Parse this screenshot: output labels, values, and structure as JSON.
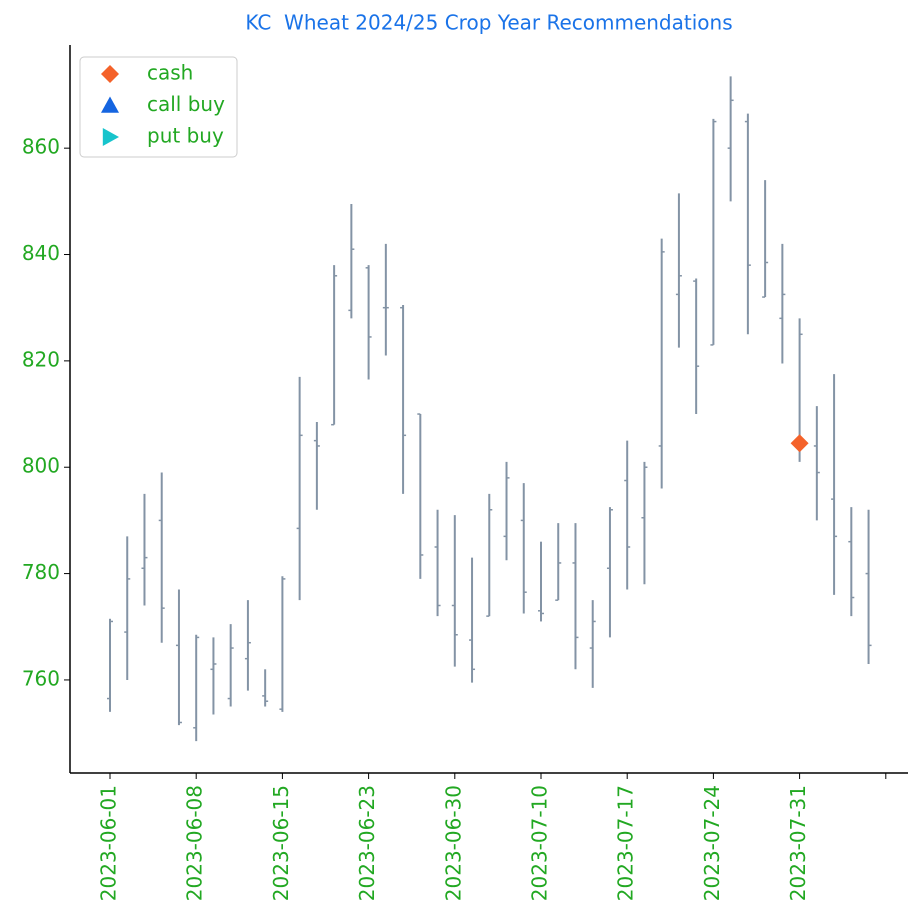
{
  "chart_data": {
    "type": "ohlc",
    "title": "KC  Wheat 2024/25 Crop Year Recommendations",
    "categories": [
      "2023-06-01",
      null,
      null,
      null,
      null,
      "2023-06-08",
      null,
      null,
      null,
      null,
      "2023-06-15",
      null,
      null,
      null,
      null,
      "2023-06-23",
      null,
      null,
      null,
      null,
      "2023-06-30",
      null,
      null,
      null,
      null,
      "2023-07-10",
      null,
      null,
      null,
      null,
      "2023-07-17",
      null,
      null,
      null,
      null,
      "2023-07-24",
      null,
      null,
      null,
      null,
      "2023-07-31",
      null,
      null,
      null,
      null,
      null
    ],
    "ohlc": {
      "color": "#8393a5",
      "open": [
        756.5,
        769,
        781,
        790,
        766.5,
        751,
        762,
        756.5,
        764,
        757,
        754.5,
        788.5,
        805,
        808,
        829.5,
        837.5,
        830,
        830,
        810,
        785,
        774,
        767.5,
        772,
        787,
        790,
        773,
        775,
        782,
        766,
        781,
        797.5,
        790.5,
        804,
        832.5,
        835,
        823,
        860,
        865,
        832,
        828,
        805,
        804,
        794,
        786,
        780,
        null
      ],
      "high": [
        771.5,
        787,
        795,
        799,
        777,
        768.5,
        768,
        770.5,
        775,
        762,
        779.5,
        817,
        808.5,
        838,
        849.5,
        838,
        842,
        830.5,
        810,
        792,
        791,
        783,
        795,
        801,
        797,
        786,
        789.5,
        789.5,
        775,
        792.5,
        805,
        801,
        843,
        851.5,
        835.5,
        865.5,
        873.5,
        866.5,
        854,
        842,
        828,
        811.5,
        817.5,
        792.5,
        792,
        null
      ],
      "low": [
        754,
        760,
        774,
        767,
        751.5,
        748.5,
        753.5,
        755,
        758,
        755,
        754,
        775,
        792,
        808,
        828,
        816.5,
        821,
        795,
        779,
        772,
        762.5,
        759.5,
        772,
        782.5,
        772.5,
        771,
        775,
        762,
        758.5,
        768,
        777,
        778,
        796,
        822.5,
        810,
        823,
        850,
        825,
        832,
        819.5,
        801,
        790,
        776,
        772,
        763,
        null
      ],
      "close": [
        771,
        779,
        783,
        773.5,
        752,
        768,
        763,
        766,
        767,
        756,
        779,
        806,
        804,
        836,
        841,
        824.5,
        830,
        806,
        783.5,
        774,
        768.5,
        762,
        792,
        798,
        776.5,
        772.5,
        782,
        768,
        771,
        792,
        785,
        800,
        840.5,
        836,
        819,
        865,
        869,
        838,
        838.5,
        832.5,
        825,
        799,
        787,
        775.5,
        766.5,
        null
      ]
    },
    "series": [
      {
        "name": "cash",
        "color": "#f4622a",
        "marker": "diamond",
        "values": [
          null,
          null,
          null,
          null,
          null,
          null,
          null,
          null,
          null,
          null,
          null,
          null,
          null,
          null,
          null,
          null,
          null,
          null,
          null,
          null,
          null,
          null,
          null,
          null,
          null,
          null,
          null,
          null,
          null,
          null,
          null,
          null,
          null,
          null,
          null,
          null,
          null,
          null,
          null,
          null,
          804.5,
          null,
          null,
          null,
          null,
          null
        ]
      },
      {
        "name": "call buy",
        "color": "#1565e0",
        "marker": "triangle-up",
        "values": [
          null,
          null,
          null,
          null,
          null,
          null,
          null,
          null,
          null,
          null,
          null,
          null,
          null,
          null,
          null,
          null,
          null,
          null,
          null,
          null,
          null,
          null,
          null,
          null,
          null,
          null,
          null,
          null,
          null,
          null,
          null,
          null,
          null,
          null,
          null,
          null,
          null,
          null,
          null,
          null,
          null,
          null,
          null,
          null,
          null,
          null
        ]
      },
      {
        "name": "put buy",
        "color": "#17c4cc",
        "marker": "triangle-right",
        "values": [
          null,
          null,
          null,
          null,
          null,
          null,
          null,
          null,
          null,
          null,
          null,
          null,
          null,
          null,
          null,
          null,
          null,
          null,
          null,
          null,
          null,
          null,
          null,
          null,
          null,
          null,
          null,
          null,
          null,
          null,
          null,
          null,
          null,
          null,
          null,
          null,
          null,
          null,
          null,
          null,
          null,
          null,
          null,
          null,
          null,
          null
        ]
      }
    ],
    "ylim": [
      742.5,
      879.4
    ],
    "yticks": [
      760,
      780,
      800,
      820,
      840,
      860
    ],
    "legend": "upper-left",
    "label_color": "#22a822",
    "title_color": "#1a73e8"
  }
}
